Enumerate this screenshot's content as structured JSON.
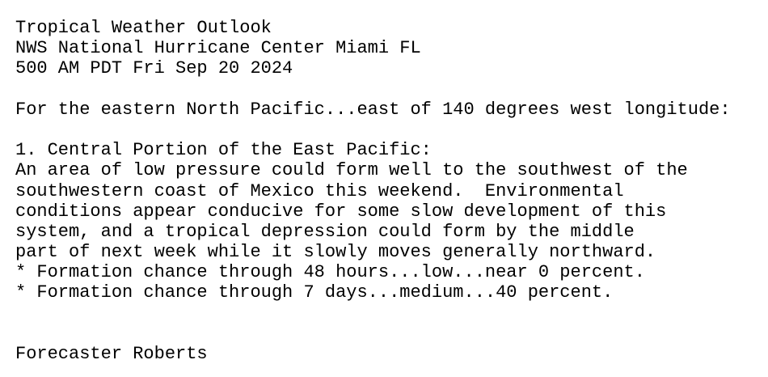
{
  "header": {
    "title": "Tropical Weather Outlook",
    "office": "NWS National Hurricane Center Miami FL",
    "issued": "500 AM PDT Fri Sep 20 2024"
  },
  "intro": "For the eastern North Pacific...east of 140 degrees west longitude:",
  "systems": [
    {
      "heading": "1. Central Portion of the East Pacific:",
      "body": [
        "An area of low pressure could form well to the southwest of the",
        "southwestern coast of Mexico this weekend.  Environmental",
        "conditions appear conducive for some slow development of this",
        "system, and a tropical depression could form by the middle",
        "part of next week while it slowly moves generally northward."
      ],
      "chances": [
        "* Formation chance through 48 hours...low...near 0 percent.",
        "* Formation chance through 7 days...medium...40 percent."
      ]
    }
  ],
  "signature": "Forecaster Roberts"
}
